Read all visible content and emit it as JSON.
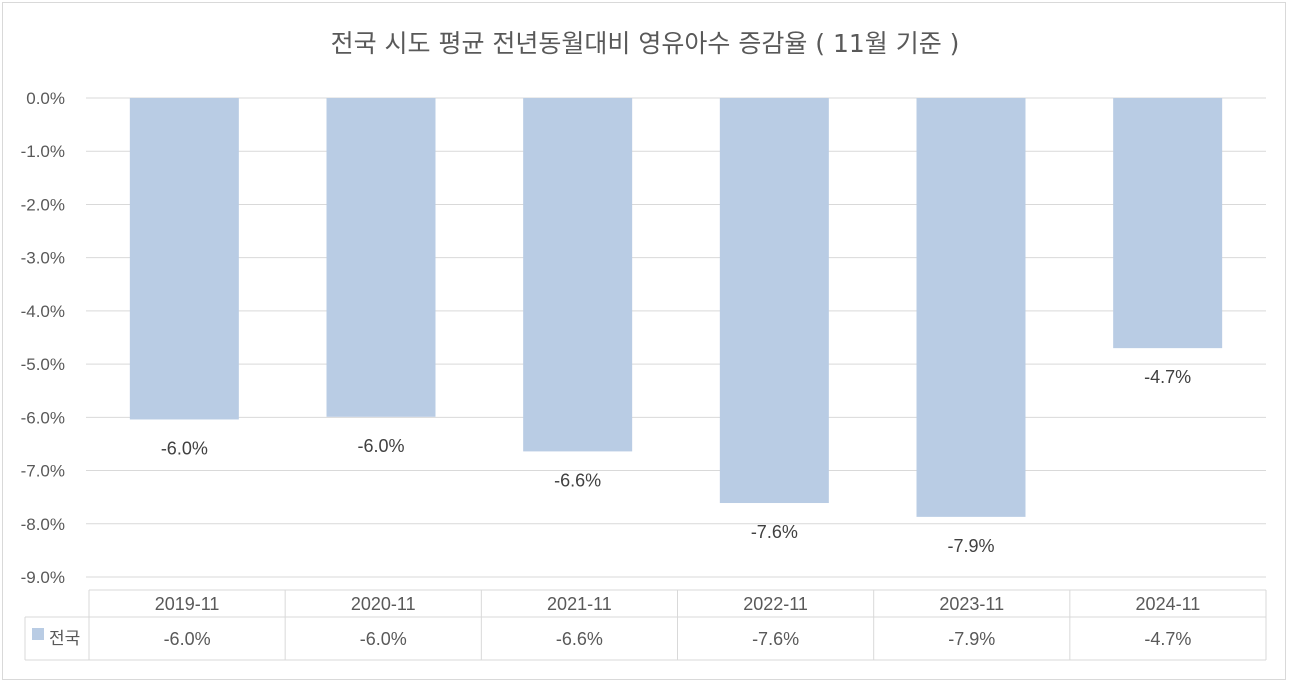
{
  "chart_data": {
    "type": "bar",
    "title": "전국 시도 평균 전년동월대비 영유아수 증감율 ( 11월 기준 )",
    "categories": [
      "2019-11",
      "2020-11",
      "2021-11",
      "2022-11",
      "2023-11",
      "2024-11"
    ],
    "series": [
      {
        "name": "전국",
        "values": [
          -6.04,
          -5.99,
          -6.64,
          -7.61,
          -7.87,
          -4.7
        ],
        "labels": [
          "-6.0%",
          "-6.0%",
          "-6.6%",
          "-7.6%",
          "-7.9%",
          "-4.7%"
        ],
        "color": "#b9cce4"
      }
    ],
    "ylim": [
      -9,
      0
    ],
    "yticks": [
      0,
      -1,
      -2,
      -3,
      -4,
      -5,
      -6,
      -7,
      -8,
      -9
    ],
    "ytick_labels": [
      "0.0%",
      "-1.0%",
      "-2.0%",
      "-3.0%",
      "-4.0%",
      "-5.0%",
      "-6.0%",
      "-7.0%",
      "-8.0%",
      "-9.0%"
    ],
    "grid": true,
    "legend": "data-table",
    "data_table": true,
    "colors": {
      "bar": "#b9cce4",
      "grid": "#d9d9d9",
      "text": "#595959"
    }
  }
}
